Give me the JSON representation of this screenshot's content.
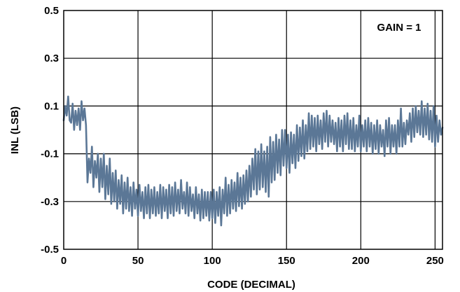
{
  "chart_data": {
    "type": "line",
    "xlabel": "CODE (DECIMAL)",
    "ylabel": "INL (LSB)",
    "annotation": "GAIN = 1",
    "xlim": [
      0,
      255
    ],
    "ylim": [
      -0.5,
      0.5
    ],
    "x_ticks": [
      0,
      50,
      100,
      150,
      200,
      250
    ],
    "y_ticks": [
      -0.5,
      -0.3,
      -0.1,
      0.1,
      0.3,
      0.5
    ],
    "x_tick_labels": [
      "0",
      "50",
      "100",
      "150",
      "200",
      "250"
    ],
    "y_tick_labels": [
      "-0.5",
      "-0.3",
      "-0.1",
      "0.1",
      "0.3",
      "0.5"
    ],
    "grid": true,
    "line_color": "#5b7796",
    "series": [
      {
        "values": [
          [
            0,
            0.04
          ],
          [
            1,
            0.1
          ],
          [
            2,
            0.06
          ],
          [
            3,
            0.14
          ],
          [
            4,
            0.04
          ],
          [
            5,
            0.03
          ],
          [
            6,
            0.11
          ],
          [
            7,
            0.0
          ],
          [
            8,
            0.08
          ],
          [
            9,
            0.02
          ],
          [
            10,
            0.09
          ],
          [
            11,
            0.0
          ],
          [
            12,
            0.12
          ],
          [
            13,
            0.04
          ],
          [
            14,
            0.09
          ],
          [
            15,
            0.02
          ],
          [
            16,
            -0.22
          ],
          [
            17,
            -0.12
          ],
          [
            18,
            -0.18
          ],
          [
            19,
            -0.07
          ],
          [
            20,
            -0.24
          ],
          [
            21,
            -0.13
          ],
          [
            22,
            -0.2
          ],
          [
            23,
            -0.1
          ],
          [
            24,
            -0.26
          ],
          [
            25,
            -0.12
          ],
          [
            26,
            -0.24
          ],
          [
            27,
            -0.1
          ],
          [
            28,
            -0.29
          ],
          [
            29,
            -0.15
          ],
          [
            30,
            -0.27
          ],
          [
            31,
            -0.12
          ],
          [
            32,
            -0.31
          ],
          [
            33,
            -0.18
          ],
          [
            34,
            -0.3
          ],
          [
            35,
            -0.17
          ],
          [
            36,
            -0.33
          ],
          [
            37,
            -0.21
          ],
          [
            38,
            -0.31
          ],
          [
            39,
            -0.19
          ],
          [
            40,
            -0.35
          ],
          [
            41,
            -0.22
          ],
          [
            42,
            -0.33
          ],
          [
            43,
            -0.2
          ],
          [
            44,
            -0.34
          ],
          [
            45,
            -0.24
          ],
          [
            46,
            -0.36
          ],
          [
            47,
            -0.22
          ],
          [
            48,
            -0.33
          ],
          [
            49,
            -0.25
          ],
          [
            50,
            -0.36
          ],
          [
            51,
            -0.23
          ],
          [
            52,
            -0.34
          ],
          [
            53,
            -0.26
          ],
          [
            54,
            -0.37
          ],
          [
            55,
            -0.24
          ],
          [
            56,
            -0.35
          ],
          [
            57,
            -0.23
          ],
          [
            58,
            -0.37
          ],
          [
            59,
            -0.25
          ],
          [
            60,
            -0.35
          ],
          [
            61,
            -0.24
          ],
          [
            62,
            -0.36
          ],
          [
            63,
            -0.26
          ],
          [
            64,
            -0.35
          ],
          [
            65,
            -0.23
          ],
          [
            66,
            -0.37
          ],
          [
            67,
            -0.24
          ],
          [
            68,
            -0.34
          ],
          [
            69,
            -0.25
          ],
          [
            70,
            -0.37
          ],
          [
            71,
            -0.23
          ],
          [
            72,
            -0.35
          ],
          [
            73,
            -0.24
          ],
          [
            74,
            -0.36
          ],
          [
            75,
            -0.22
          ],
          [
            76,
            -0.34
          ],
          [
            77,
            -0.25
          ],
          [
            78,
            -0.35
          ],
          [
            79,
            -0.21
          ],
          [
            80,
            -0.33
          ],
          [
            81,
            -0.26
          ],
          [
            82,
            -0.35
          ],
          [
            83,
            -0.22
          ],
          [
            84,
            -0.36
          ],
          [
            85,
            -0.24
          ],
          [
            86,
            -0.34
          ],
          [
            87,
            -0.27
          ],
          [
            88,
            -0.37
          ],
          [
            89,
            -0.24
          ],
          [
            90,
            -0.35
          ],
          [
            91,
            -0.27
          ],
          [
            92,
            -0.38
          ],
          [
            93,
            -0.25
          ],
          [
            94,
            -0.37
          ],
          [
            95,
            -0.26
          ],
          [
            96,
            -0.36
          ],
          [
            97,
            -0.26
          ],
          [
            98,
            -0.38
          ],
          [
            99,
            -0.26
          ],
          [
            100,
            -0.37
          ],
          [
            101,
            -0.25
          ],
          [
            102,
            -0.39
          ],
          [
            103,
            -0.26
          ],
          [
            104,
            -0.36
          ],
          [
            105,
            -0.24
          ],
          [
            106,
            -0.4
          ],
          [
            107,
            -0.25
          ],
          [
            108,
            -0.35
          ],
          [
            109,
            -0.2
          ],
          [
            110,
            -0.36
          ],
          [
            111,
            -0.23
          ],
          [
            112,
            -0.35
          ],
          [
            113,
            -0.21
          ],
          [
            114,
            -0.33
          ],
          [
            115,
            -0.22
          ],
          [
            116,
            -0.34
          ],
          [
            117,
            -0.18
          ],
          [
            118,
            -0.32
          ],
          [
            119,
            -0.2
          ],
          [
            120,
            -0.33
          ],
          [
            121,
            -0.19
          ],
          [
            122,
            -0.31
          ],
          [
            123,
            -0.17
          ],
          [
            124,
            -0.3
          ],
          [
            125,
            -0.15
          ],
          [
            126,
            -0.28
          ],
          [
            127,
            -0.12
          ],
          [
            128,
            -0.25
          ],
          [
            129,
            -0.08
          ],
          [
            130,
            -0.27
          ],
          [
            131,
            -0.09
          ],
          [
            132,
            -0.25
          ],
          [
            133,
            -0.06
          ],
          [
            134,
            -0.24
          ],
          [
            135,
            -0.09
          ],
          [
            136,
            -0.26
          ],
          [
            137,
            -0.07
          ],
          [
            138,
            -0.28
          ],
          [
            139,
            -0.03
          ],
          [
            140,
            -0.22
          ],
          [
            141,
            -0.05
          ],
          [
            142,
            -0.21
          ],
          [
            143,
            -0.02
          ],
          [
            144,
            -0.18
          ],
          [
            145,
            -0.04
          ],
          [
            146,
            -0.19
          ],
          [
            147,
            0.0
          ],
          [
            148,
            -0.15
          ],
          [
            149,
            0.0
          ],
          [
            150,
            -0.16
          ],
          [
            151,
            -0.02
          ],
          [
            152,
            -0.18
          ],
          [
            153,
            -0.01
          ],
          [
            154,
            -0.14
          ],
          [
            155,
            -0.02
          ],
          [
            156,
            -0.16
          ],
          [
            157,
            0.02
          ],
          [
            158,
            -0.13
          ],
          [
            159,
            0.01
          ],
          [
            160,
            -0.11
          ],
          [
            161,
            0.04
          ],
          [
            162,
            -0.12
          ],
          [
            163,
            0.02
          ],
          [
            164,
            -0.09
          ],
          [
            165,
            0.07
          ],
          [
            166,
            -0.08
          ],
          [
            167,
            0.06
          ],
          [
            168,
            -0.07
          ],
          [
            169,
            0.05
          ],
          [
            170,
            -0.09
          ],
          [
            171,
            0.06
          ],
          [
            172,
            -0.06
          ],
          [
            173,
            0.04
          ],
          [
            174,
            -0.08
          ],
          [
            175,
            0.07
          ],
          [
            176,
            -0.05
          ],
          [
            177,
            0.08
          ],
          [
            178,
            -0.07
          ],
          [
            179,
            0.06
          ],
          [
            180,
            -0.05
          ],
          [
            181,
            0.04
          ],
          [
            182,
            -0.06
          ],
          [
            183,
            0.03
          ],
          [
            184,
            -0.09
          ],
          [
            185,
            0.05
          ],
          [
            186,
            -0.07
          ],
          [
            187,
            0.04
          ],
          [
            188,
            -0.09
          ],
          [
            189,
            0.06
          ],
          [
            190,
            -0.06
          ],
          [
            191,
            0.07
          ],
          [
            192,
            -0.08
          ],
          [
            193,
            0.04
          ],
          [
            194,
            -0.08
          ],
          [
            195,
            0.05
          ],
          [
            196,
            -0.09
          ],
          [
            197,
            0.02
          ],
          [
            198,
            -0.07
          ],
          [
            199,
            0.06
          ],
          [
            200,
            -0.09
          ],
          [
            201,
            0.02
          ],
          [
            202,
            -0.07
          ],
          [
            203,
            0.04
          ],
          [
            204,
            -0.09
          ],
          [
            205,
            0.05
          ],
          [
            206,
            -0.07
          ],
          [
            207,
            0.03
          ],
          [
            208,
            -0.1
          ],
          [
            209,
            0.02
          ],
          [
            210,
            -0.08
          ],
          [
            211,
            0.04
          ],
          [
            212,
            -0.1
          ],
          [
            213,
            0.02
          ],
          [
            214,
            -0.07
          ],
          [
            215,
            0.0
          ],
          [
            216,
            -0.11
          ],
          [
            217,
            0.04
          ],
          [
            218,
            -0.07
          ],
          [
            219,
            0.05
          ],
          [
            220,
            -0.1
          ],
          [
            221,
            0.02
          ],
          [
            222,
            -0.07
          ],
          [
            223,
            0.02
          ],
          [
            224,
            -0.1
          ],
          [
            225,
            0.04
          ],
          [
            226,
            -0.07
          ],
          [
            227,
            0.09
          ],
          [
            228,
            -0.07
          ],
          [
            229,
            0.03
          ],
          [
            230,
            -0.06
          ],
          [
            231,
            0.04
          ],
          [
            232,
            -0.02
          ],
          [
            233,
            0.07
          ],
          [
            234,
            -0.05
          ],
          [
            235,
            0.09
          ],
          [
            236,
            -0.03
          ],
          [
            237,
            0.1
          ],
          [
            238,
            -0.01
          ],
          [
            239,
            0.08
          ],
          [
            240,
            -0.02
          ],
          [
            241,
            0.12
          ],
          [
            242,
            -0.03
          ],
          [
            243,
            0.09
          ],
          [
            244,
            -0.02
          ],
          [
            245,
            0.11
          ],
          [
            246,
            -0.04
          ],
          [
            247,
            0.08
          ],
          [
            248,
            -0.05
          ],
          [
            249,
            0.1
          ],
          [
            250,
            -0.07
          ],
          [
            251,
            0.06
          ],
          [
            252,
            -0.05
          ],
          [
            253,
            0.04
          ],
          [
            254,
            -0.02
          ],
          [
            255,
            0.01
          ]
        ]
      }
    ]
  }
}
